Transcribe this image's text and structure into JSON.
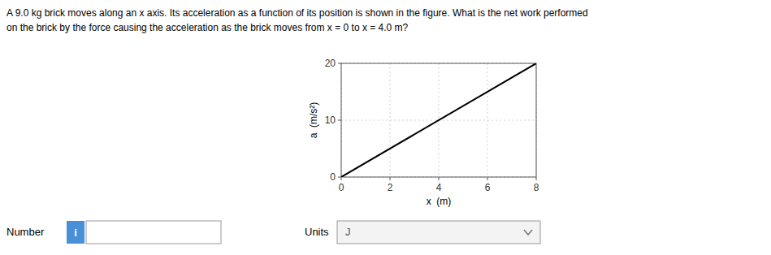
{
  "chart_data": {
    "type": "line",
    "title": "A 9.0 kg brick moves along an x axis. Its acceleration as a function of its position is shown in the figure. What is the net work performed",
    "subtitle": "on the brick by the force causing the acceleration as the brick moves from x = 0 to x = 4.0 m?",
    "xlabel": "x  (m)",
    "ylabel": "a  (m/s²)",
    "x": [
      0,
      8
    ],
    "values": [
      0,
      20
    ],
    "color": "#000000",
    "xlim": [
      0,
      8
    ],
    "ylim": [
      0,
      20
    ],
    "xticks": [
      0,
      2,
      4,
      6,
      8
    ],
    "yticks": [
      0,
      10,
      20
    ],
    "grid": true,
    "annotations": [
      "Number",
      "i",
      "Units",
      "J"
    ]
  }
}
